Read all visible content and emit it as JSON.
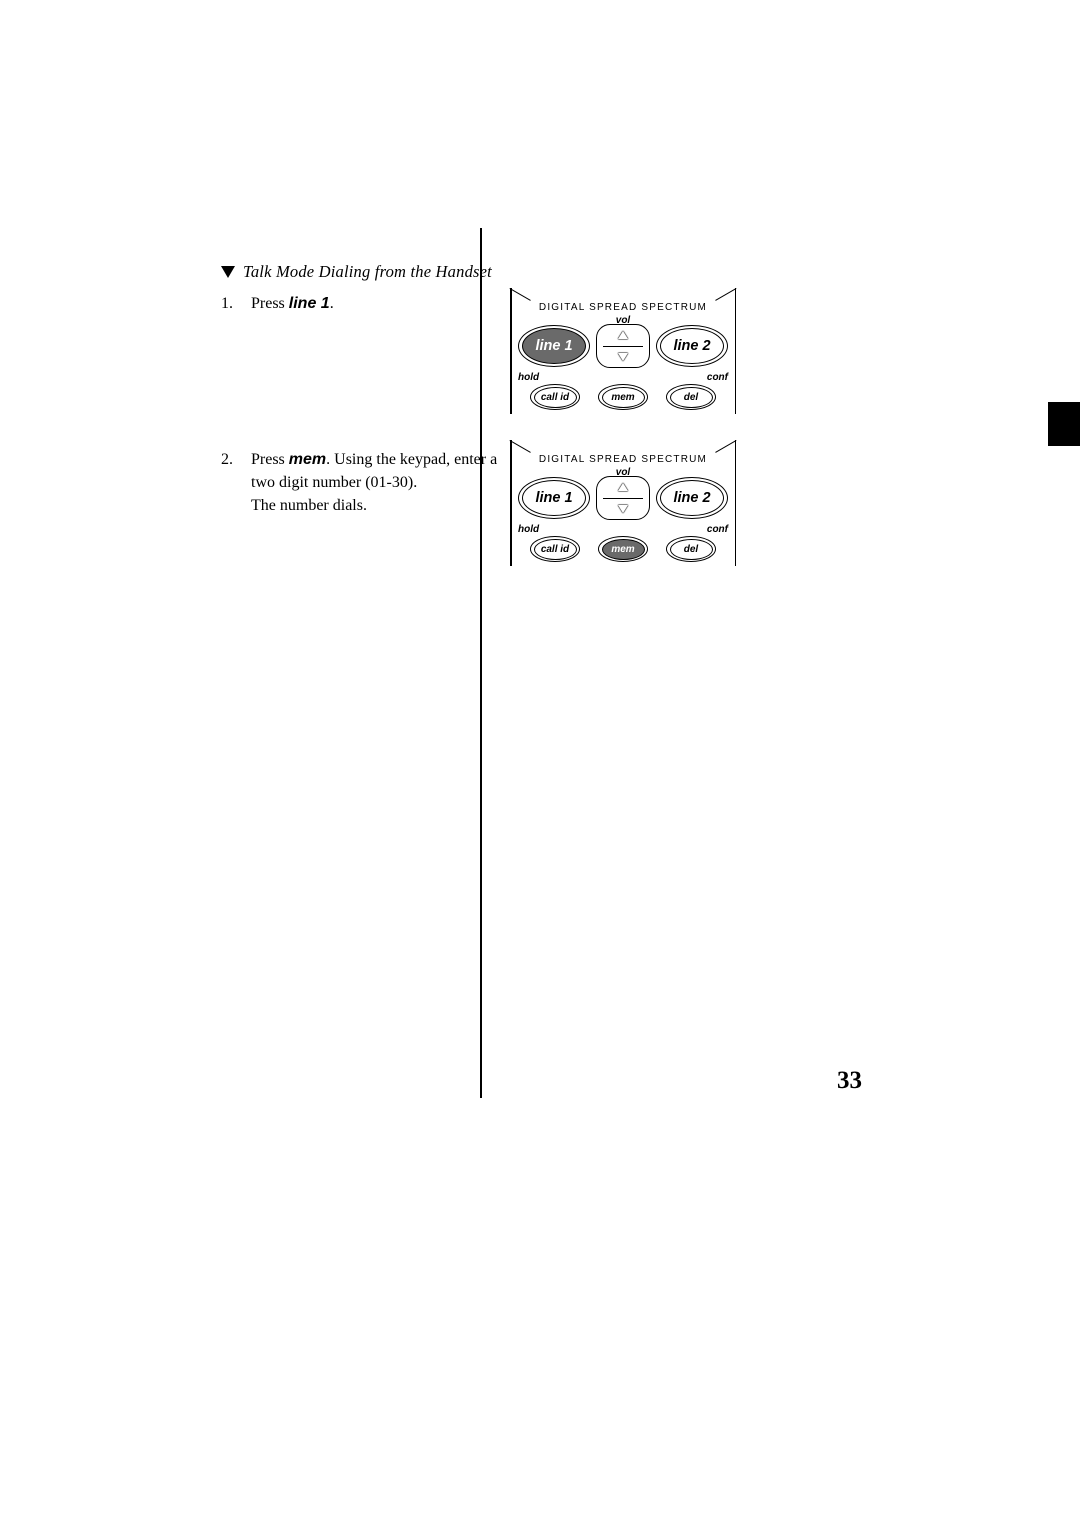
{
  "heading": "Talk Mode Dialing from  the Handset",
  "steps": {
    "s1": {
      "num": "1.",
      "pre": "Press ",
      "kw": "line 1",
      "post": "."
    },
    "s2": {
      "num": "2.",
      "pre": "Press ",
      "kw": "mem",
      "post1": ". Using the keypad, enter a",
      "line2": "two digit number (01-30).",
      "line3": "The number dials."
    }
  },
  "diagram": {
    "dss": "DIGITAL  SPREAD  SPECTRUM",
    "vol": "vol",
    "hold": "hold",
    "conf": "conf",
    "line1": "line 1",
    "line2": "line 2",
    "callid": "call  id",
    "mem": "mem",
    "del": "del"
  },
  "page_number": "33"
}
